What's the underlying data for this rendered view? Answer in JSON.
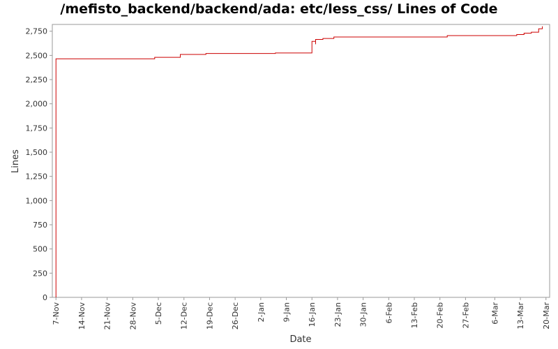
{
  "chart_data": {
    "type": "line",
    "title": "/mefisto_backend/backend/ada: etc/less_css/ Lines of Code",
    "xlabel": "Date",
    "ylabel": "Lines",
    "ylim": [
      0,
      2820
    ],
    "xlim": [
      "2007-11-06",
      "2008-03-21"
    ],
    "yticks": [
      "0",
      "250",
      "500",
      "750",
      "1,000",
      "1,250",
      "1,500",
      "1,750",
      "2,000",
      "2,250",
      "2,500",
      "2,750"
    ],
    "xticks": [
      {
        "label": "7-Nov",
        "date": "2007-11-07"
      },
      {
        "label": "14-Nov",
        "date": "2007-11-14"
      },
      {
        "label": "21-Nov",
        "date": "2007-11-21"
      },
      {
        "label": "28-Nov",
        "date": "2007-11-28"
      },
      {
        "label": "5-Dec",
        "date": "2007-12-05"
      },
      {
        "label": "12-Dec",
        "date": "2007-12-12"
      },
      {
        "label": "19-Dec",
        "date": "2007-12-19"
      },
      {
        "label": "26-Dec",
        "date": "2007-12-26"
      },
      {
        "label": "2-Jan",
        "date": "2008-01-02"
      },
      {
        "label": "9-Jan",
        "date": "2008-01-09"
      },
      {
        "label": "16-Jan",
        "date": "2008-01-16"
      },
      {
        "label": "23-Jan",
        "date": "2008-01-23"
      },
      {
        "label": "30-Jan",
        "date": "2008-01-30"
      },
      {
        "label": "6-Feb",
        "date": "2008-02-06"
      },
      {
        "label": "13-Feb",
        "date": "2008-02-13"
      },
      {
        "label": "20-Feb",
        "date": "2008-02-20"
      },
      {
        "label": "27-Feb",
        "date": "2008-02-27"
      },
      {
        "label": "6-Mar",
        "date": "2008-03-06"
      },
      {
        "label": "13-Mar",
        "date": "2008-03-13"
      },
      {
        "label": "20-Mar",
        "date": "2008-03-20"
      }
    ],
    "series": [
      {
        "color": "#cc0000",
        "step": true,
        "points": [
          {
            "x": "2007-11-07",
            "y": 0
          },
          {
            "x": "2007-11-07",
            "y": 2465
          },
          {
            "x": "2007-12-04",
            "y": 2480
          },
          {
            "x": "2007-12-11",
            "y": 2510
          },
          {
            "x": "2007-12-18",
            "y": 2520
          },
          {
            "x": "2008-01-06",
            "y": 2525
          },
          {
            "x": "2008-01-16",
            "y": 2645
          },
          {
            "x": "2008-01-17",
            "y": 2615
          },
          {
            "x": "2008-01-17",
            "y": 2665
          },
          {
            "x": "2008-01-19",
            "y": 2675
          },
          {
            "x": "2008-01-22",
            "y": 2690
          },
          {
            "x": "2008-02-22",
            "y": 2705
          },
          {
            "x": "2008-03-12",
            "y": 2715
          },
          {
            "x": "2008-03-14",
            "y": 2730
          },
          {
            "x": "2008-03-16",
            "y": 2740
          },
          {
            "x": "2008-03-18",
            "y": 2775
          },
          {
            "x": "2008-03-19",
            "y": 2800
          }
        ]
      }
    ]
  }
}
